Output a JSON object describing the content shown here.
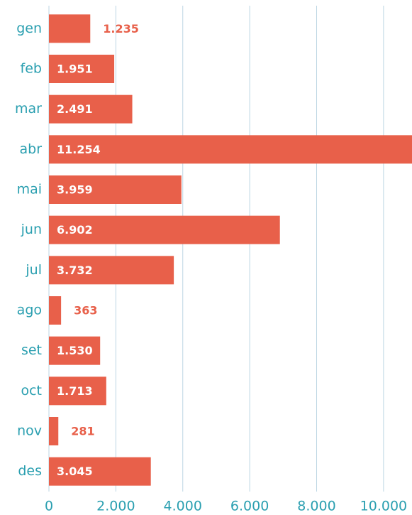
{
  "chart_data": {
    "type": "barh",
    "categories": [
      "gen",
      "feb",
      "mar",
      "abr",
      "mai",
      "jun",
      "jul",
      "ago",
      "set",
      "oct",
      "nov",
      "des"
    ],
    "values": [
      1235,
      1951,
      2491,
      11254,
      3959,
      6902,
      3732,
      363,
      1530,
      1713,
      281,
      3045
    ],
    "value_labels": [
      "1.235",
      "1.951",
      "2.491",
      "11.254",
      "3.959",
      "6.902",
      "3.732",
      "363",
      "1.530",
      "1.713",
      "281",
      "3.045"
    ],
    "color": "#e8604a",
    "xlim": [
      0,
      10850
    ],
    "xticks": [
      0,
      {
        "value": 2000,
        "label": "2.000"
      },
      {
        "value": 4000,
        "label": "4.000"
      },
      {
        "value": 6000,
        "label": "6.000"
      },
      {
        "value": 8000,
        "label": "8.000"
      },
      {
        "value": 10000,
        "label": "10.000"
      }
    ],
    "grid": true
  }
}
